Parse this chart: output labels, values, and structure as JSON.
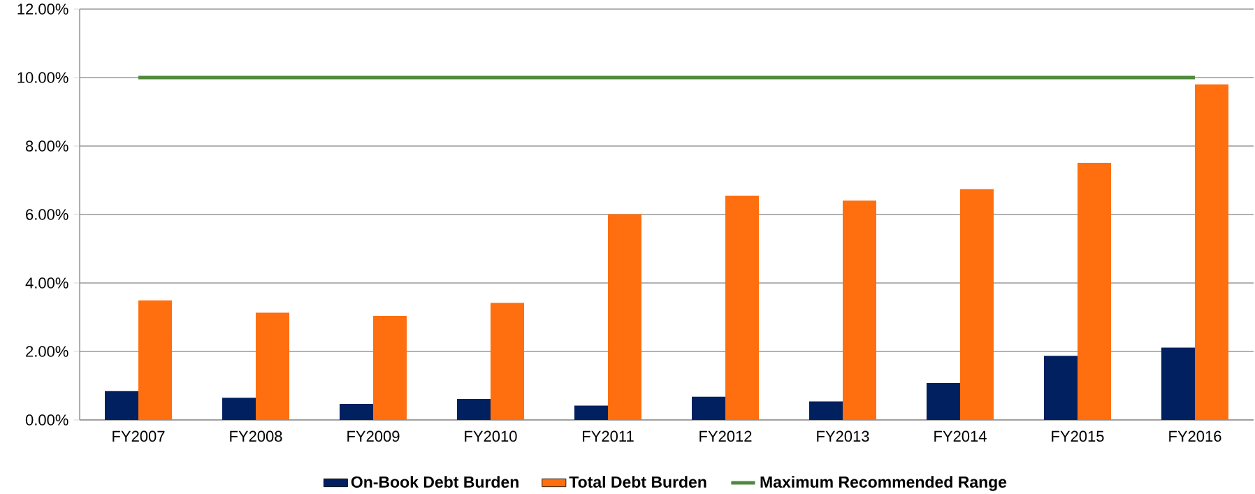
{
  "chart_data": {
    "type": "bar",
    "categories": [
      "FY2007",
      "FY2008",
      "FY2009",
      "FY2010",
      "FY2011",
      "FY2012",
      "FY2013",
      "FY2014",
      "FY2015",
      "FY2016"
    ],
    "series": [
      {
        "name": "On-Book Debt Burden",
        "color": "#002060",
        "values": [
          0.84,
          0.65,
          0.47,
          0.61,
          0.42,
          0.68,
          0.54,
          1.08,
          1.87,
          2.11
        ]
      },
      {
        "name": "Total Debt Burden",
        "color": "#ff6f0f",
        "values": [
          3.49,
          3.13,
          3.04,
          3.42,
          6.01,
          6.55,
          6.41,
          6.74,
          7.51,
          9.8
        ]
      },
      {
        "name": "Maximum Recommended Range",
        "type": "line",
        "color": "#4f8a3c",
        "values": [
          10,
          10,
          10,
          10,
          10,
          10,
          10,
          10,
          10,
          10
        ]
      }
    ],
    "ylim": [
      0,
      12
    ],
    "yticks": [
      {
        "value": 0,
        "label": "0.00%"
      },
      {
        "value": 2,
        "label": "2.00%"
      },
      {
        "value": 4,
        "label": "4.00%"
      },
      {
        "value": 6,
        "label": "6.00%"
      },
      {
        "value": 8,
        "label": "8.00%"
      },
      {
        "value": 10,
        "label": "10.00%"
      },
      {
        "value": 12,
        "label": "12.00%"
      }
    ],
    "grid": "y",
    "legend": "bottom",
    "marker": "none"
  }
}
